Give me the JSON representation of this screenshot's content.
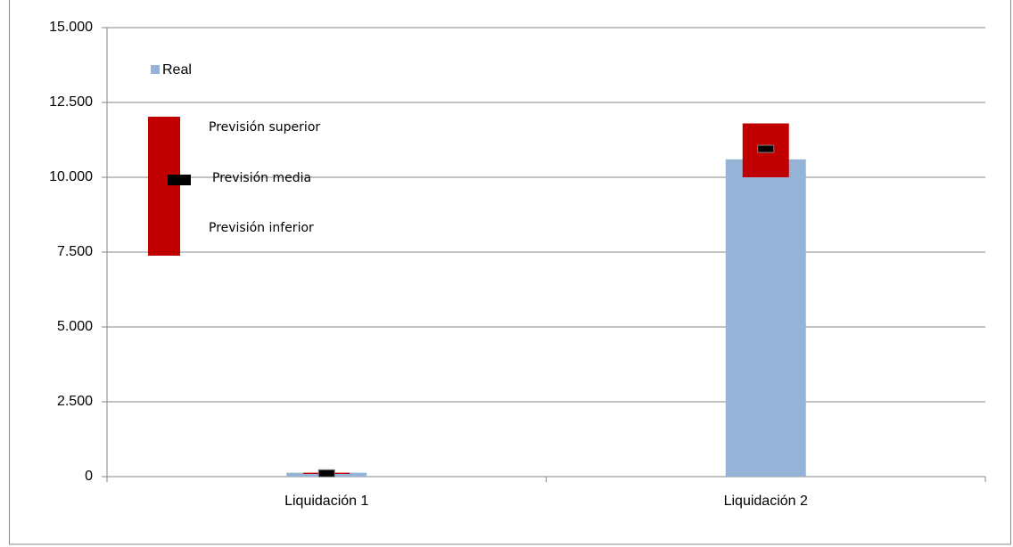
{
  "chart_data": {
    "type": "bar",
    "categories": [
      "Liquidación 1",
      "Liquidación 2"
    ],
    "series": [
      {
        "name": "Real",
        "color": "#95b3d7",
        "values": [
          130,
          10600
        ]
      },
      {
        "name": "Previsión inferior",
        "color": "#c00000",
        "values": [
          90,
          10000
        ]
      },
      {
        "name": "Previsión superior",
        "color": "#c00000",
        "values": [
          130,
          11800
        ]
      },
      {
        "name": "Previsión media",
        "color": "#000000",
        "values": [
          110,
          10950
        ]
      }
    ],
    "ylim": [
      0,
      15000
    ],
    "yticks": [
      0,
      {
        "value": 2500,
        "label": "2.500"
      },
      {
        "value": 5000,
        "label": "5.000"
      },
      {
        "value": 7500,
        "label": "7.500"
      },
      {
        "value": 10000,
        "label": "10.000"
      },
      {
        "value": 12500,
        "label": "12.500"
      },
      {
        "value": 15000,
        "label": "15.000"
      }
    ],
    "grid": true
  }
}
